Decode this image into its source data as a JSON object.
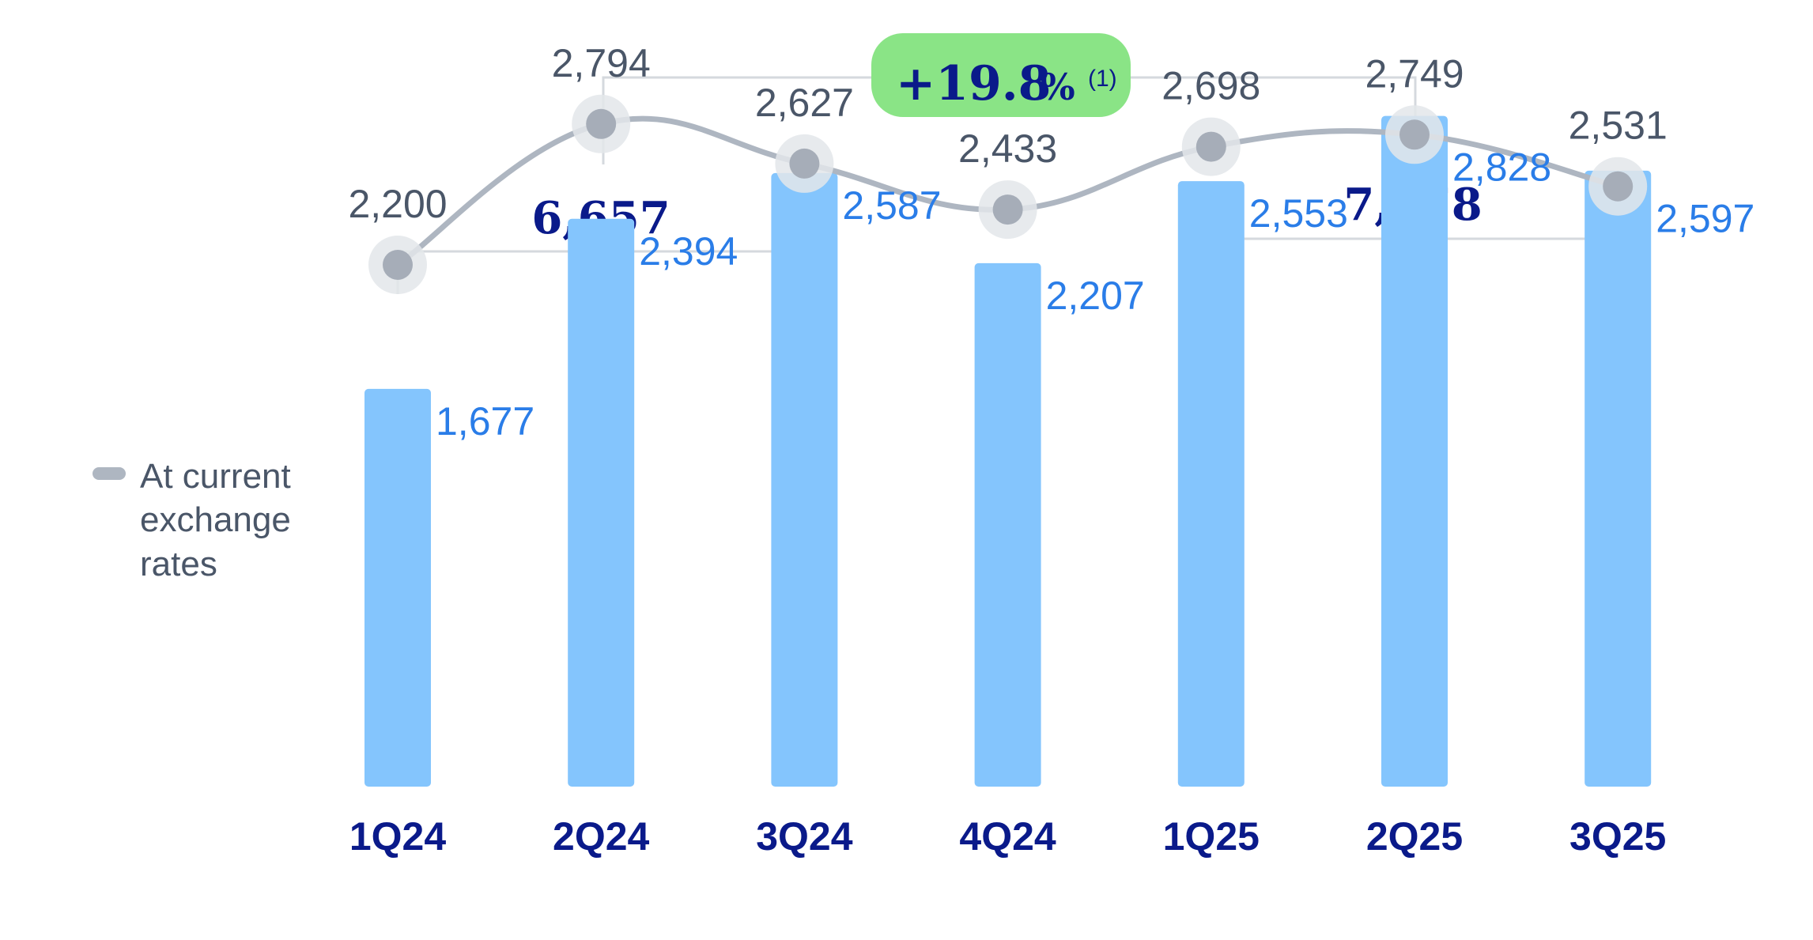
{
  "chart_data": {
    "type": "bar",
    "categories": [
      "1Q24",
      "2Q24",
      "3Q24",
      "4Q24",
      "1Q25",
      "2Q25",
      "3Q25"
    ],
    "series": [
      {
        "values": [
          1677,
          2394,
          2587,
          2207,
          2553,
          2828,
          2597
        ],
        "type": "bar"
      },
      {
        "name": "At current exchange rates",
        "values": [
          2200,
          2794,
          2627,
          2433,
          2698,
          2749,
          2531
        ],
        "type": "line"
      }
    ],
    "bar_labels": [
      "1,677",
      "2,394",
      "2,587",
      "2,207",
      "2,553",
      "2,828",
      "2,597"
    ],
    "line_labels": [
      "2,200",
      "2,794",
      "2,627",
      "2,433",
      "2,698",
      "2,749",
      "2,531"
    ],
    "ylim": [
      0,
      3000
    ],
    "legend": {
      "label_lines": [
        "At current",
        "exchange",
        "rates"
      ],
      "position": "left"
    },
    "group_totals": [
      {
        "label": "6,657",
        "from": "1Q24",
        "to": "3Q24"
      },
      {
        "label": "7,978",
        "from": "1Q25",
        "to": "3Q25"
      }
    ],
    "growth_badge": {
      "value": "+19.8",
      "unit": "%",
      "note": "(1)"
    },
    "colors": {
      "bar": "#84c5fd",
      "bar_label": "#2a7de8",
      "line": "#aeb6c1",
      "marker": "#a6adb8",
      "marker_halo": "#e3e6ea",
      "line_label": "#4a5668",
      "category": "#0a1a8a",
      "bracket": "#d5d9de",
      "badge": "#8ae486"
    }
  }
}
